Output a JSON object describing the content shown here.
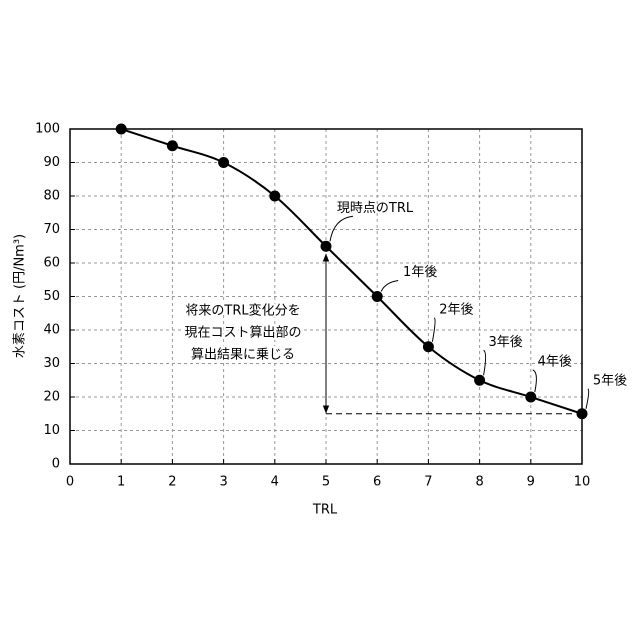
{
  "chart_data": {
    "type": "line",
    "x_label": "TRL",
    "y_label": "水素コスト (円/Nm³)",
    "x": [
      1,
      2,
      3,
      4,
      5,
      6,
      7,
      8,
      9,
      10
    ],
    "series": [
      {
        "color": "#000000",
        "values": [
          100,
          95,
          90,
          80,
          65,
          50,
          35,
          25,
          20,
          15
        ]
      }
    ],
    "xlim": [
      0,
      10
    ],
    "xticks": [
      0,
      1,
      2,
      3,
      4,
      5,
      6,
      7,
      8,
      9,
      10
    ],
    "ylim": [
      0,
      100
    ],
    "yticks": [
      0,
      10,
      20,
      30,
      40,
      50,
      60,
      70,
      80,
      90,
      100
    ],
    "grid": true,
    "annotations": [
      "現時点のTRL",
      "1年後",
      "2年後",
      "3年後",
      "4年後",
      "5年後"
    ],
    "note": [
      "将来のTRL変化分を",
      "現在コスト算出部の",
      "算出結果に乗じる"
    ]
  }
}
